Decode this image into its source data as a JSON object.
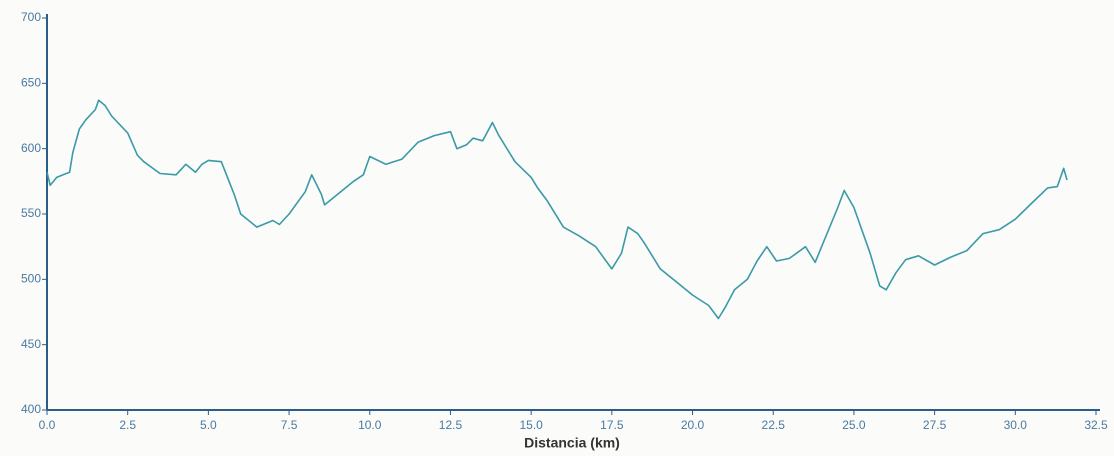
{
  "chart_data": {
    "type": "line",
    "x_label": "Distancia (km)",
    "x": [
      0,
      0.1,
      0.3,
      0.5,
      0.7,
      0.8,
      1.0,
      1.2,
      1.5,
      1.6,
      1.8,
      2.0,
      2.5,
      2.8,
      3.0,
      3.5,
      4.0,
      4.3,
      4.6,
      4.8,
      5.0,
      5.4,
      5.8,
      6.0,
      6.5,
      7.0,
      7.2,
      7.5,
      8.0,
      8.2,
      8.5,
      8.6,
      9.0,
      9.5,
      9.8,
      10.0,
      10.5,
      11.0,
      11.5,
      12.0,
      12.5,
      12.7,
      13.0,
      13.2,
      13.5,
      13.8,
      14.0,
      14.5,
      15.0,
      15.2,
      15.5,
      16.0,
      16.5,
      17.0,
      17.5,
      17.8,
      18.0,
      18.3,
      18.5,
      19.0,
      19.5,
      20.0,
      20.5,
      20.8,
      21.0,
      21.3,
      21.7,
      22.0,
      22.3,
      22.6,
      23.0,
      23.5,
      23.8,
      24.0,
      24.5,
      24.7,
      25.0,
      25.5,
      25.8,
      26.0,
      26.3,
      26.6,
      27.0,
      27.5,
      28.0,
      28.5,
      29.0,
      29.5,
      30.0,
      30.5,
      31.0,
      31.3,
      31.5,
      31.6
    ],
    "values": [
      582,
      572,
      578,
      580,
      582,
      597,
      615,
      622,
      630,
      637,
      633,
      625,
      612,
      595,
      590,
      581,
      580,
      588,
      582,
      588,
      591,
      590,
      565,
      550,
      540,
      545,
      542,
      550,
      567,
      580,
      565,
      557,
      565,
      575,
      580,
      594,
      588,
      592,
      605,
      610,
      613,
      600,
      603,
      608,
      606,
      620,
      610,
      590,
      578,
      570,
      560,
      540,
      533,
      525,
      508,
      520,
      540,
      535,
      528,
      508,
      498,
      488,
      480,
      470,
      478,
      492,
      500,
      514,
      525,
      514,
      516,
      525,
      513,
      525,
      555,
      568,
      555,
      520,
      495,
      492,
      505,
      515,
      518,
      511,
      517,
      522,
      535,
      538,
      546,
      558,
      570,
      571,
      585,
      576
    ],
    "color": "#3a9aa8",
    "xlim": [
      0,
      32.5
    ],
    "xticks": [
      {
        "value": 0,
        "label": "0.0"
      },
      2.5,
      {
        "value": 5,
        "label": "5.0"
      },
      7.5,
      {
        "value": 10,
        "label": "10.0"
      },
      12.5,
      {
        "value": 15,
        "label": "15.0"
      },
      17.5,
      {
        "value": 20,
        "label": "20.0"
      },
      22.5,
      {
        "value": 25,
        "label": "25.0"
      },
      27.5,
      {
        "value": 30,
        "label": "30.0"
      },
      32.5
    ],
    "ylim": [
      400,
      700
    ],
    "yticks": [
      400,
      450,
      500,
      550,
      600,
      650,
      700
    ]
  }
}
